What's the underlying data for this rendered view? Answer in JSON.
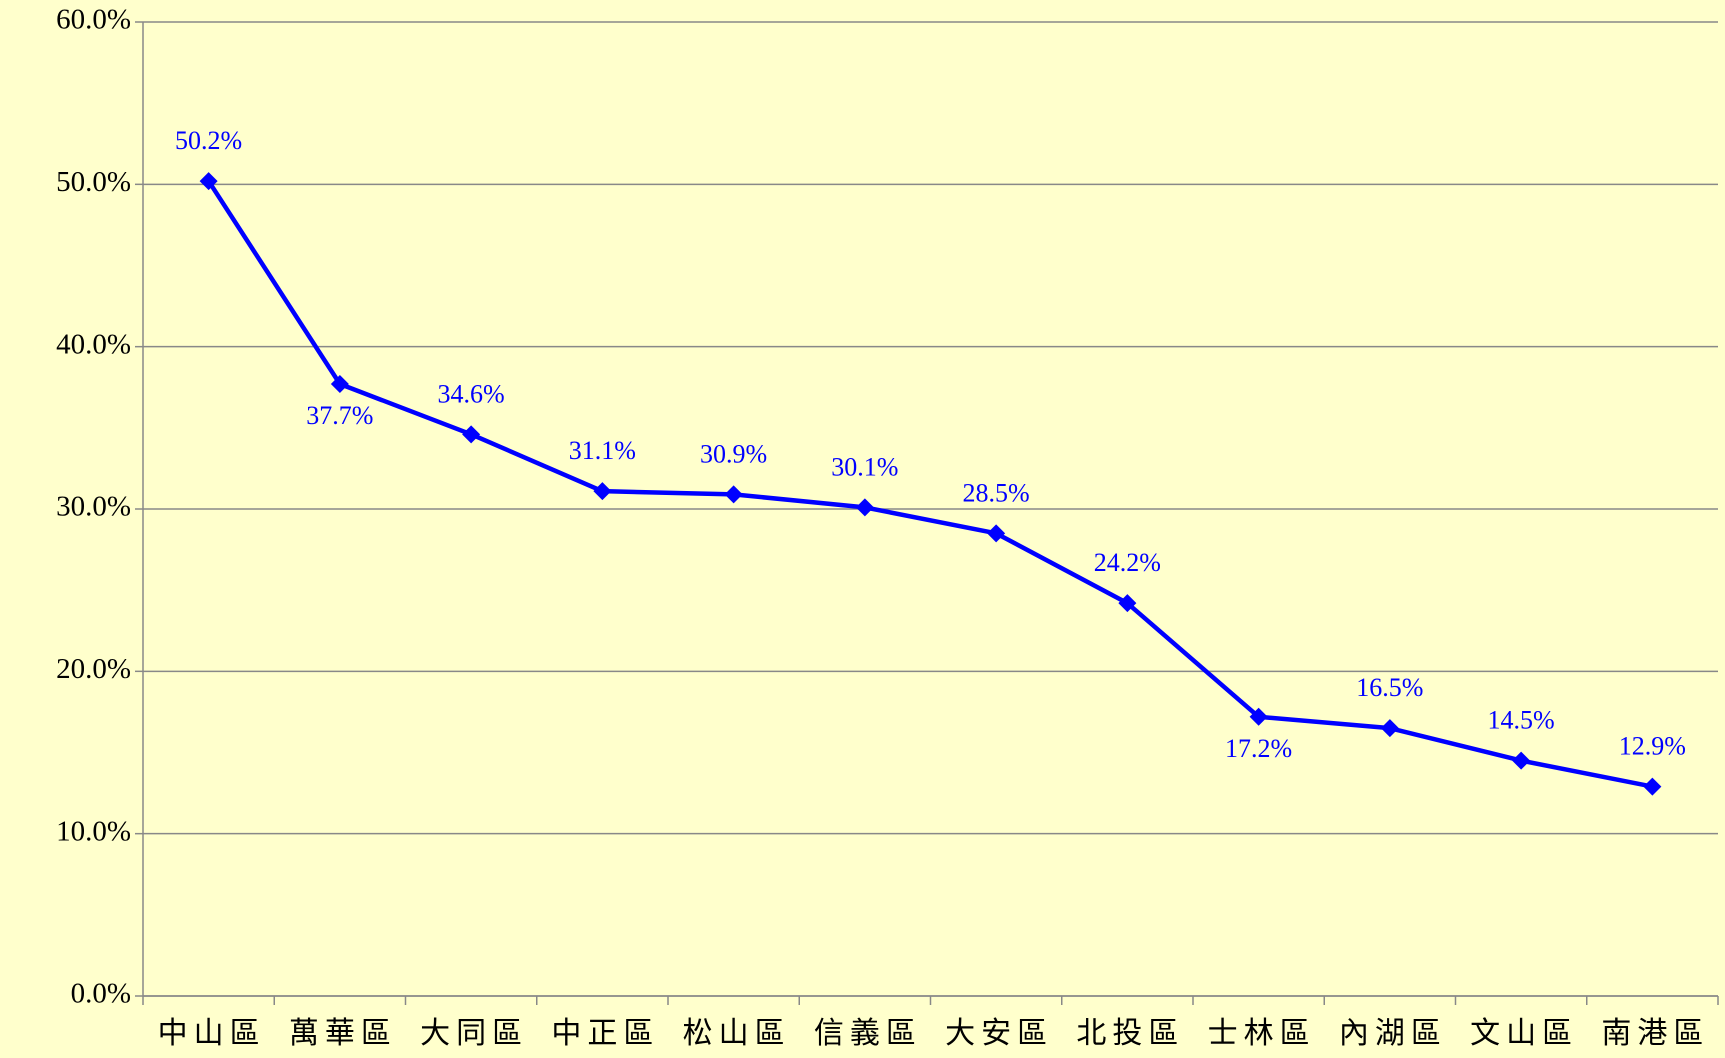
{
  "chart_data": {
    "type": "line",
    "categories": [
      "中山區",
      "萬華區",
      "大同區",
      "中正區",
      "松山區",
      "信義區",
      "大安區",
      "北投區",
      "士林區",
      "內湖區",
      "文山區",
      "南港區"
    ],
    "series": [
      {
        "color": "#0000ff",
        "values": [
          50.2,
          37.7,
          34.6,
          31.1,
          30.9,
          30.1,
          28.5,
          24.2,
          17.2,
          16.5,
          14.5,
          12.9
        ],
        "value_labels": [
          "50.2%",
          "37.7%",
          "34.6%",
          "31.1%",
          "30.9%",
          "30.1%",
          "28.5%",
          "24.2%",
          "17.2%",
          "16.5%",
          "14.5%",
          "12.9%"
        ]
      }
    ],
    "ylim": [
      0,
      60
    ],
    "yticks": [
      {
        "value": 0,
        "label": "0.0%"
      },
      {
        "value": 10,
        "label": "10.0%"
      },
      {
        "value": 20,
        "label": "20.0%"
      },
      {
        "value": 30,
        "label": "30.0%"
      },
      {
        "value": 40,
        "label": "40.0%"
      },
      {
        "value": 50,
        "label": "50.0%"
      },
      {
        "value": 60,
        "label": "60.0%"
      }
    ],
    "grid": true
  }
}
